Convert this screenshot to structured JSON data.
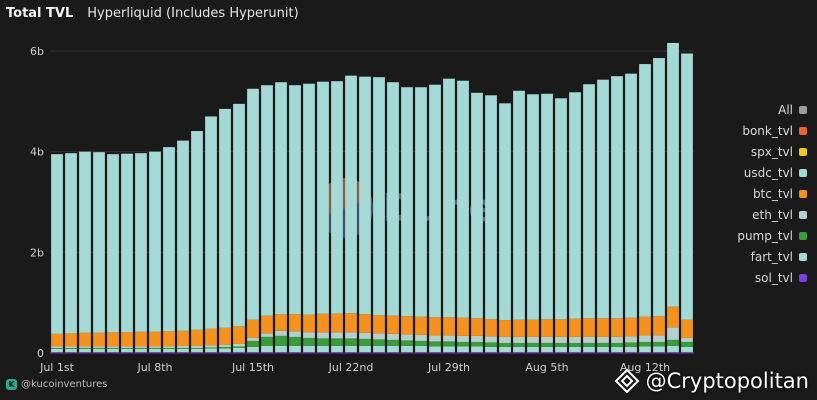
{
  "header": {
    "title": "Total TVL",
    "subtitle": "Hyperliquid (Includes Hyperunit)"
  },
  "footer": {
    "handle": "@kucoinventures",
    "brand": "@Cryptopolitan"
  },
  "watermark": {
    "text": "Dune"
  },
  "icons": {
    "kucoin": "kucoin-logo-icon",
    "cryptopolitan": "cryptopolitan-diamond-icon",
    "dune": "dune-logo-icon"
  },
  "chart_data": {
    "type": "bar",
    "stacked": true,
    "title": "Total TVL",
    "ylim": [
      0,
      6
    ],
    "yticks": [
      {
        "value": 0,
        "label": "0"
      },
      {
        "value": 2,
        "label": "2b"
      },
      {
        "value": 4,
        "label": "4b"
      },
      {
        "value": 6,
        "label": "6b"
      }
    ],
    "xtick_labels": [
      {
        "index": 0,
        "label": "Jul 1st"
      },
      {
        "index": 7,
        "label": "Jul 8th"
      },
      {
        "index": 14,
        "label": "Jul 15th"
      },
      {
        "index": 21,
        "label": "Jul 22nd"
      },
      {
        "index": 28,
        "label": "Jul 29th"
      },
      {
        "index": 35,
        "label": "Aug 5th"
      },
      {
        "index": 42,
        "label": "Aug 12th"
      }
    ],
    "categories": [
      "Jul 1",
      "Jul 2",
      "Jul 3",
      "Jul 4",
      "Jul 5",
      "Jul 6",
      "Jul 7",
      "Jul 8",
      "Jul 9",
      "Jul 10",
      "Jul 11",
      "Jul 12",
      "Jul 13",
      "Jul 14",
      "Jul 15",
      "Jul 16",
      "Jul 17",
      "Jul 18",
      "Jul 19",
      "Jul 20",
      "Jul 21",
      "Jul 22",
      "Jul 23",
      "Jul 24",
      "Jul 25",
      "Jul 26",
      "Jul 27",
      "Jul 28",
      "Jul 29",
      "Jul 30",
      "Jul 31",
      "Aug 1",
      "Aug 2",
      "Aug 3",
      "Aug 4",
      "Aug 5",
      "Aug 6",
      "Aug 7",
      "Aug 8",
      "Aug 9",
      "Aug 10",
      "Aug 11",
      "Aug 12",
      "Aug 13",
      "Aug 14",
      "Aug 15"
    ],
    "legend": [
      {
        "name": "All",
        "color": "#9e9e9e"
      },
      {
        "name": "bonk_tvl",
        "color": "#f0622d"
      },
      {
        "name": "spx_tvl",
        "color": "#f5c518"
      },
      {
        "name": "usdc_tvl",
        "color": "#a4d9d5"
      },
      {
        "name": "btc_tvl",
        "color": "#f5921e"
      },
      {
        "name": "eth_tvl",
        "color": "#b5cfcf"
      },
      {
        "name": "pump_tvl",
        "color": "#3a9b3a"
      },
      {
        "name": "fart_tvl",
        "color": "#a4d9d5"
      },
      {
        "name": "sol_tvl",
        "color": "#7c3ee0"
      }
    ],
    "series": [
      {
        "name": "sol_tvl",
        "color": "#7c3ee0",
        "values": [
          0.02,
          0.02,
          0.02,
          0.02,
          0.02,
          0.02,
          0.02,
          0.02,
          0.02,
          0.02,
          0.02,
          0.02,
          0.02,
          0.02,
          0.02,
          0.02,
          0.02,
          0.02,
          0.02,
          0.02,
          0.02,
          0.02,
          0.02,
          0.02,
          0.02,
          0.02,
          0.02,
          0.02,
          0.02,
          0.02,
          0.02,
          0.02,
          0.02,
          0.02,
          0.02,
          0.02,
          0.02,
          0.02,
          0.02,
          0.02,
          0.02,
          0.02,
          0.02,
          0.02,
          0.02,
          0.02
        ]
      },
      {
        "name": "fart_tvl",
        "color": "#a4d9d5",
        "values": [
          0.06,
          0.06,
          0.06,
          0.06,
          0.06,
          0.06,
          0.06,
          0.06,
          0.06,
          0.06,
          0.06,
          0.07,
          0.07,
          0.08,
          0.1,
          0.12,
          0.12,
          0.12,
          0.12,
          0.12,
          0.12,
          0.12,
          0.12,
          0.12,
          0.12,
          0.12,
          0.12,
          0.11,
          0.11,
          0.11,
          0.11,
          0.1,
          0.1,
          0.1,
          0.1,
          0.1,
          0.1,
          0.1,
          0.1,
          0.1,
          0.1,
          0.1,
          0.11,
          0.11,
          0.12,
          0.1
        ]
      },
      {
        "name": "pump_tvl",
        "color": "#3a9b3a",
        "values": [
          0.02,
          0.02,
          0.02,
          0.02,
          0.02,
          0.02,
          0.02,
          0.02,
          0.02,
          0.02,
          0.02,
          0.02,
          0.03,
          0.03,
          0.12,
          0.18,
          0.2,
          0.18,
          0.16,
          0.15,
          0.15,
          0.15,
          0.14,
          0.13,
          0.12,
          0.11,
          0.1,
          0.1,
          0.1,
          0.09,
          0.09,
          0.09,
          0.08,
          0.08,
          0.08,
          0.08,
          0.08,
          0.08,
          0.08,
          0.08,
          0.08,
          0.09,
          0.09,
          0.09,
          0.12,
          0.1
        ]
      },
      {
        "name": "eth_tvl",
        "color": "#b5cfcf",
        "values": [
          0.03,
          0.03,
          0.03,
          0.03,
          0.03,
          0.03,
          0.03,
          0.03,
          0.03,
          0.04,
          0.04,
          0.04,
          0.04,
          0.05,
          0.06,
          0.07,
          0.1,
          0.11,
          0.11,
          0.12,
          0.12,
          0.12,
          0.12,
          0.12,
          0.12,
          0.12,
          0.12,
          0.12,
          0.12,
          0.12,
          0.12,
          0.12,
          0.12,
          0.12,
          0.12,
          0.12,
          0.12,
          0.12,
          0.12,
          0.12,
          0.12,
          0.12,
          0.13,
          0.13,
          0.25,
          0.08
        ]
      },
      {
        "name": "btc_tvl",
        "color": "#f5921e",
        "values": [
          0.25,
          0.26,
          0.27,
          0.27,
          0.28,
          0.28,
          0.29,
          0.29,
          0.3,
          0.3,
          0.32,
          0.33,
          0.34,
          0.35,
          0.36,
          0.35,
          0.33,
          0.34,
          0.35,
          0.37,
          0.37,
          0.38,
          0.37,
          0.36,
          0.36,
          0.36,
          0.36,
          0.36,
          0.36,
          0.36,
          0.35,
          0.34,
          0.33,
          0.34,
          0.34,
          0.35,
          0.35,
          0.36,
          0.37,
          0.37,
          0.37,
          0.37,
          0.37,
          0.38,
          0.41,
          0.36
        ]
      },
      {
        "name": "spx_tvl",
        "color": "#f5c518",
        "values": [
          0,
          0,
          0,
          0,
          0,
          0,
          0,
          0,
          0,
          0,
          0,
          0,
          0,
          0,
          0,
          0,
          0,
          0,
          0,
          0,
          0,
          0,
          0,
          0,
          0,
          0,
          0,
          0,
          0,
          0,
          0,
          0,
          0,
          0,
          0,
          0,
          0,
          0,
          0,
          0,
          0,
          0,
          0,
          0,
          0,
          0
        ]
      },
      {
        "name": "bonk_tvl",
        "color": "#f0622d",
        "values": [
          0,
          0,
          0,
          0,
          0,
          0,
          0,
          0,
          0,
          0,
          0,
          0,
          0,
          0,
          0,
          0,
          0,
          0,
          0,
          0,
          0,
          0,
          0,
          0,
          0,
          0,
          0,
          0,
          0,
          0,
          0,
          0,
          0,
          0,
          0,
          0,
          0,
          0,
          0,
          0,
          0,
          0,
          0,
          0,
          0,
          0
        ]
      },
      {
        "name": "usdc_tvl",
        "color": "#a4d9d5",
        "values": [
          3.57,
          3.58,
          3.6,
          3.59,
          3.54,
          3.55,
          3.55,
          3.58,
          3.66,
          3.78,
          3.95,
          4.22,
          4.35,
          4.42,
          4.59,
          4.58,
          4.61,
          4.55,
          4.59,
          4.61,
          4.62,
          4.72,
          4.72,
          4.73,
          4.64,
          4.55,
          4.56,
          4.62,
          4.74,
          4.71,
          4.48,
          4.45,
          4.31,
          4.55,
          4.48,
          4.48,
          4.39,
          4.5,
          4.65,
          4.74,
          4.81,
          4.85,
          5.02,
          5.13,
          5.24,
          5.29
        ]
      }
    ]
  }
}
